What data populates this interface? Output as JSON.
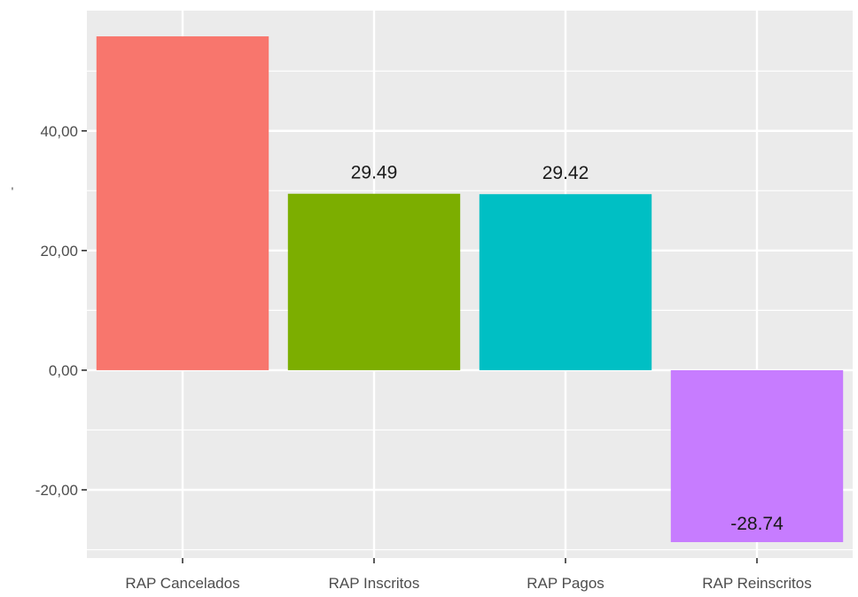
{
  "chart_data": {
    "type": "bar",
    "title": "",
    "xlabel": "",
    "ylabel": "'",
    "categories": [
      "RAP Cancelados",
      "RAP Inscritos",
      "RAP Pagos",
      "RAP Reinscritos"
    ],
    "values": [
      55.8,
      29.49,
      29.42,
      -28.74
    ],
    "data_labels": [
      "",
      "29.49",
      "29.42",
      "-28.74"
    ],
    "colors": [
      "#F8766D",
      "#7CAE00",
      "#00BFC4",
      "#C77CFF"
    ],
    "yticks": [
      -20,
      0,
      20,
      40
    ],
    "ytick_labels": [
      "-20,00",
      "0,00",
      "20,00",
      "40,00"
    ],
    "ylim": [
      -31.4,
      60.1
    ],
    "grid": true,
    "legend": "none"
  }
}
